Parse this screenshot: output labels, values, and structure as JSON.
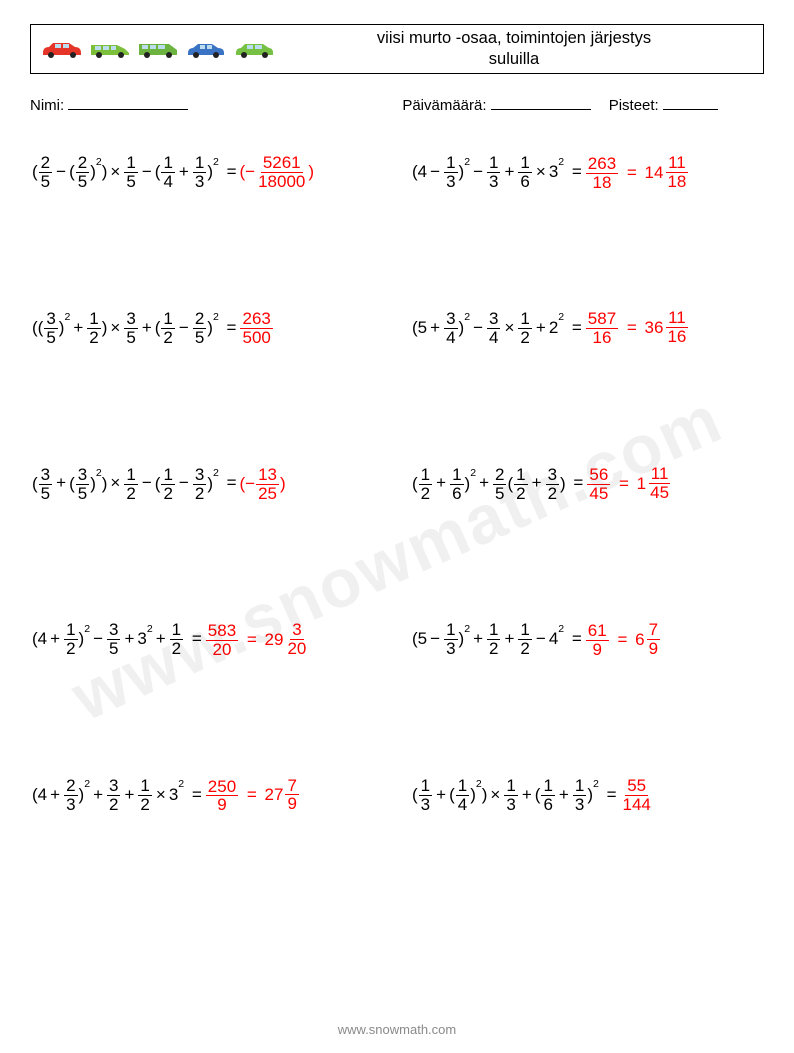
{
  "header": {
    "title_line1": "viisi murto -osaa, toimintojen järjestys",
    "title_line2": "suluilla",
    "car_colors": [
      "#e53528",
      "#7bbf3a",
      "#6cb33f",
      "#3a72c4",
      "#76c043"
    ]
  },
  "meta": {
    "name_label": "Nimi:",
    "date_label": "Päivämäärä:",
    "score_label": "Pisteet:"
  },
  "watermark": "www.snowmath.com",
  "footer": "www.snowmath.com",
  "problems": [
    {
      "tokens": [
        {
          "t": "txt",
          "v": "("
        },
        {
          "t": "frac",
          "n": "2",
          "d": "5"
        },
        {
          "t": "op",
          "v": "−"
        },
        {
          "t": "txt",
          "v": "("
        },
        {
          "t": "frac",
          "n": "2",
          "d": "5"
        },
        {
          "t": "txt",
          "v": ")"
        },
        {
          "t": "sup",
          "v": "2"
        },
        {
          "t": "txt",
          "v": ")"
        },
        {
          "t": "op",
          "v": "×"
        },
        {
          "t": "frac",
          "n": "1",
          "d": "5"
        },
        {
          "t": "op",
          "v": "−"
        },
        {
          "t": "txt",
          "v": "("
        },
        {
          "t": "frac",
          "n": "1",
          "d": "4"
        },
        {
          "t": "op",
          "v": "+"
        },
        {
          "t": "frac",
          "n": "1",
          "d": "3"
        },
        {
          "t": "txt",
          "v": ")"
        },
        {
          "t": "sup",
          "v": "2"
        },
        {
          "t": "op",
          "v": " = "
        }
      ],
      "answer": [
        {
          "t": "txt",
          "v": "(−"
        },
        {
          "t": "frac",
          "n": "5261",
          "d": "18000"
        },
        {
          "t": "txt",
          "v": ")"
        }
      ]
    },
    {
      "tokens": [
        {
          "t": "txt",
          "v": "(4"
        },
        {
          "t": "op",
          "v": "−"
        },
        {
          "t": "frac",
          "n": "1",
          "d": "3"
        },
        {
          "t": "txt",
          "v": ")"
        },
        {
          "t": "sup",
          "v": "2"
        },
        {
          "t": "op",
          "v": "−"
        },
        {
          "t": "frac",
          "n": "1",
          "d": "3"
        },
        {
          "t": "op",
          "v": "+"
        },
        {
          "t": "frac",
          "n": "1",
          "d": "6"
        },
        {
          "t": "op",
          "v": "×"
        },
        {
          "t": "txt",
          "v": "3"
        },
        {
          "t": "sup",
          "v": "2"
        },
        {
          "t": "op",
          "v": " = "
        }
      ],
      "answer": [
        {
          "t": "frac",
          "n": "263",
          "d": "18"
        },
        {
          "t": "op",
          "v": " = "
        },
        {
          "t": "mixed",
          "w": "14",
          "n": "11",
          "d": "18"
        }
      ]
    },
    {
      "tokens": [
        {
          "t": "txt",
          "v": "(("
        },
        {
          "t": "frac",
          "n": "3",
          "d": "5"
        },
        {
          "t": "txt",
          "v": ")"
        },
        {
          "t": "sup",
          "v": "2"
        },
        {
          "t": "op",
          "v": "+"
        },
        {
          "t": "frac",
          "n": "1",
          "d": "2"
        },
        {
          "t": "txt",
          "v": ")"
        },
        {
          "t": "op",
          "v": "×"
        },
        {
          "t": "frac",
          "n": "3",
          "d": "5"
        },
        {
          "t": "op",
          "v": "+"
        },
        {
          "t": "txt",
          "v": "("
        },
        {
          "t": "frac",
          "n": "1",
          "d": "2"
        },
        {
          "t": "op",
          "v": "−"
        },
        {
          "t": "frac",
          "n": "2",
          "d": "5"
        },
        {
          "t": "txt",
          "v": ")"
        },
        {
          "t": "sup",
          "v": "2"
        },
        {
          "t": "op",
          "v": " = "
        }
      ],
      "answer": [
        {
          "t": "frac",
          "n": "263",
          "d": "500"
        }
      ]
    },
    {
      "tokens": [
        {
          "t": "txt",
          "v": "(5"
        },
        {
          "t": "op",
          "v": "+"
        },
        {
          "t": "frac",
          "n": "3",
          "d": "4"
        },
        {
          "t": "txt",
          "v": ")"
        },
        {
          "t": "sup",
          "v": "2"
        },
        {
          "t": "op",
          "v": "−"
        },
        {
          "t": "frac",
          "n": "3",
          "d": "4"
        },
        {
          "t": "op",
          "v": "×"
        },
        {
          "t": "frac",
          "n": "1",
          "d": "2"
        },
        {
          "t": "op",
          "v": "+"
        },
        {
          "t": "txt",
          "v": "2"
        },
        {
          "t": "sup",
          "v": "2"
        },
        {
          "t": "op",
          "v": " = "
        }
      ],
      "answer": [
        {
          "t": "frac",
          "n": "587",
          "d": "16"
        },
        {
          "t": "op",
          "v": " = "
        },
        {
          "t": "mixed",
          "w": "36",
          "n": "11",
          "d": "16"
        }
      ]
    },
    {
      "tokens": [
        {
          "t": "txt",
          "v": "("
        },
        {
          "t": "frac",
          "n": "3",
          "d": "5"
        },
        {
          "t": "op",
          "v": "+"
        },
        {
          "t": "txt",
          "v": "("
        },
        {
          "t": "frac",
          "n": "3",
          "d": "5"
        },
        {
          "t": "txt",
          "v": ")"
        },
        {
          "t": "sup",
          "v": "2"
        },
        {
          "t": "txt",
          "v": ")"
        },
        {
          "t": "op",
          "v": "×"
        },
        {
          "t": "frac",
          "n": "1",
          "d": "2"
        },
        {
          "t": "op",
          "v": "−"
        },
        {
          "t": "txt",
          "v": "("
        },
        {
          "t": "frac",
          "n": "1",
          "d": "2"
        },
        {
          "t": "op",
          "v": "−"
        },
        {
          "t": "frac",
          "n": "3",
          "d": "2"
        },
        {
          "t": "txt",
          "v": ")"
        },
        {
          "t": "sup",
          "v": "2"
        },
        {
          "t": "op",
          "v": " = "
        }
      ],
      "answer": [
        {
          "t": "txt",
          "v": "(−"
        },
        {
          "t": "frac",
          "n": "13",
          "d": "25"
        },
        {
          "t": "txt",
          "v": ")"
        }
      ]
    },
    {
      "tokens": [
        {
          "t": "txt",
          "v": "("
        },
        {
          "t": "frac",
          "n": "1",
          "d": "2"
        },
        {
          "t": "op",
          "v": "+"
        },
        {
          "t": "frac",
          "n": "1",
          "d": "6"
        },
        {
          "t": "txt",
          "v": ")"
        },
        {
          "t": "sup",
          "v": "2"
        },
        {
          "t": "op",
          "v": "+"
        },
        {
          "t": "frac",
          "n": "2",
          "d": "5"
        },
        {
          "t": "txt",
          "v": "("
        },
        {
          "t": "frac",
          "n": "1",
          "d": "2"
        },
        {
          "t": "op",
          "v": "+"
        },
        {
          "t": "frac",
          "n": "3",
          "d": "2"
        },
        {
          "t": "txt",
          "v": ")"
        },
        {
          "t": "op",
          "v": " = "
        }
      ],
      "answer": [
        {
          "t": "frac",
          "n": "56",
          "d": "45"
        },
        {
          "t": "op",
          "v": " = "
        },
        {
          "t": "mixed",
          "w": "1",
          "n": "11",
          "d": "45"
        }
      ]
    },
    {
      "tokens": [
        {
          "t": "txt",
          "v": "(4"
        },
        {
          "t": "op",
          "v": "+"
        },
        {
          "t": "frac",
          "n": "1",
          "d": "2"
        },
        {
          "t": "txt",
          "v": ")"
        },
        {
          "t": "sup",
          "v": "2"
        },
        {
          "t": "op",
          "v": "−"
        },
        {
          "t": "frac",
          "n": "3",
          "d": "5"
        },
        {
          "t": "op",
          "v": "+"
        },
        {
          "t": "txt",
          "v": "3"
        },
        {
          "t": "sup",
          "v": "2"
        },
        {
          "t": "op",
          "v": "+"
        },
        {
          "t": "frac",
          "n": "1",
          "d": "2"
        },
        {
          "t": "op",
          "v": " = "
        }
      ],
      "answer": [
        {
          "t": "frac",
          "n": "583",
          "d": "20"
        },
        {
          "t": "op",
          "v": " = "
        },
        {
          "t": "mixed",
          "w": "29",
          "n": "3",
          "d": "20"
        }
      ]
    },
    {
      "tokens": [
        {
          "t": "txt",
          "v": "(5"
        },
        {
          "t": "op",
          "v": "−"
        },
        {
          "t": "frac",
          "n": "1",
          "d": "3"
        },
        {
          "t": "txt",
          "v": ")"
        },
        {
          "t": "sup",
          "v": "2"
        },
        {
          "t": "op",
          "v": "+"
        },
        {
          "t": "frac",
          "n": "1",
          "d": "2"
        },
        {
          "t": "op",
          "v": "+"
        },
        {
          "t": "frac",
          "n": "1",
          "d": "2"
        },
        {
          "t": "op",
          "v": "−"
        },
        {
          "t": "txt",
          "v": "4"
        },
        {
          "t": "sup",
          "v": "2"
        },
        {
          "t": "op",
          "v": " = "
        }
      ],
      "answer": [
        {
          "t": "frac",
          "n": "61",
          "d": "9"
        },
        {
          "t": "op",
          "v": " = "
        },
        {
          "t": "mixed",
          "w": "6",
          "n": "7",
          "d": "9"
        }
      ]
    },
    {
      "tokens": [
        {
          "t": "txt",
          "v": "(4"
        },
        {
          "t": "op",
          "v": "+"
        },
        {
          "t": "frac",
          "n": "2",
          "d": "3"
        },
        {
          "t": "txt",
          "v": ")"
        },
        {
          "t": "sup",
          "v": "2"
        },
        {
          "t": "op",
          "v": "+"
        },
        {
          "t": "frac",
          "n": "3",
          "d": "2"
        },
        {
          "t": "op",
          "v": "+"
        },
        {
          "t": "frac",
          "n": "1",
          "d": "2"
        },
        {
          "t": "op",
          "v": "×"
        },
        {
          "t": "txt",
          "v": "3"
        },
        {
          "t": "sup",
          "v": "2"
        },
        {
          "t": "op",
          "v": " = "
        }
      ],
      "answer": [
        {
          "t": "frac",
          "n": "250",
          "d": "9"
        },
        {
          "t": "op",
          "v": " = "
        },
        {
          "t": "mixed",
          "w": "27",
          "n": "7",
          "d": "9"
        }
      ]
    },
    {
      "tokens": [
        {
          "t": "txt",
          "v": "("
        },
        {
          "t": "frac",
          "n": "1",
          "d": "3"
        },
        {
          "t": "op",
          "v": "+"
        },
        {
          "t": "txt",
          "v": "("
        },
        {
          "t": "frac",
          "n": "1",
          "d": "4"
        },
        {
          "t": "txt",
          "v": ")"
        },
        {
          "t": "sup",
          "v": "2"
        },
        {
          "t": "txt",
          "v": ")"
        },
        {
          "t": "op",
          "v": "×"
        },
        {
          "t": "frac",
          "n": "1",
          "d": "3"
        },
        {
          "t": "op",
          "v": "+"
        },
        {
          "t": "txt",
          "v": "("
        },
        {
          "t": "frac",
          "n": "1",
          "d": "6"
        },
        {
          "t": "op",
          "v": "+"
        },
        {
          "t": "frac",
          "n": "1",
          "d": "3"
        },
        {
          "t": "txt",
          "v": ")"
        },
        {
          "t": "sup",
          "v": "2"
        },
        {
          "t": "op",
          "v": " = "
        }
      ],
      "answer": [
        {
          "t": "frac",
          "n": "55",
          "d": "144"
        }
      ]
    }
  ]
}
